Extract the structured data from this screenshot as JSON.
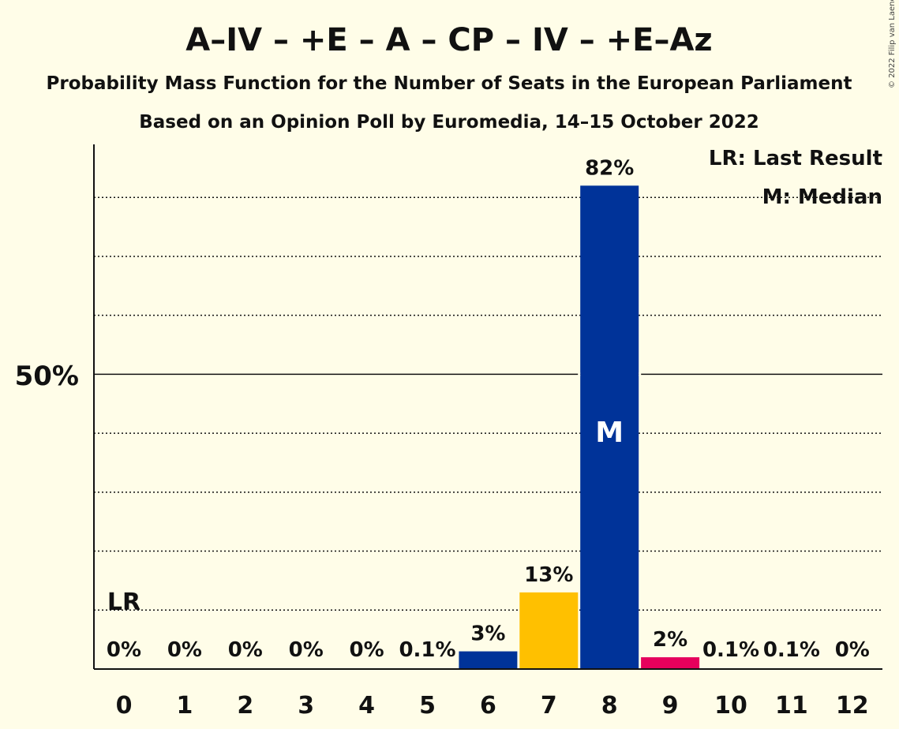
{
  "copyright": "© 2022 Filip van Laenen",
  "chart_data": {
    "type": "bar",
    "title": "A–IV – +E – A – CP – IV – +E–Az",
    "subtitle": "Probability Mass Function for the Number of Seats in the European Parliament",
    "subtitle2": "Based on an Opinion Poll by Euromedia, 14–15 October 2022",
    "categories": [
      "0",
      "1",
      "2",
      "3",
      "4",
      "5",
      "6",
      "7",
      "8",
      "9",
      "10",
      "11",
      "12"
    ],
    "values": [
      0,
      0,
      0,
      0,
      0,
      0.1,
      3,
      13,
      82,
      2,
      0.1,
      0.1,
      0
    ],
    "value_labels": [
      "0%",
      "0%",
      "0%",
      "0%",
      "0%",
      "0.1%",
      "3%",
      "13%",
      "82%",
      "2%",
      "0.1%",
      "0.1%",
      "0%"
    ],
    "bar_colors": [
      "#003399",
      "#003399",
      "#003399",
      "#003399",
      "#003399",
      "#003399",
      "#003399",
      "#FFC000",
      "#003399",
      "#E6005C",
      "#003399",
      "#003399",
      "#003399"
    ],
    "ylim": [
      0,
      89
    ],
    "ytick_label": "50%",
    "ytick_value": 50,
    "gridlines": [
      10,
      20,
      30,
      40,
      60,
      70,
      80
    ],
    "last_result_index": 0,
    "last_result_label": "LR",
    "median_index": 8,
    "median_label": "M",
    "legend": [
      "LR: Last Result",
      "M: Median"
    ],
    "legend_position": "top-right"
  }
}
